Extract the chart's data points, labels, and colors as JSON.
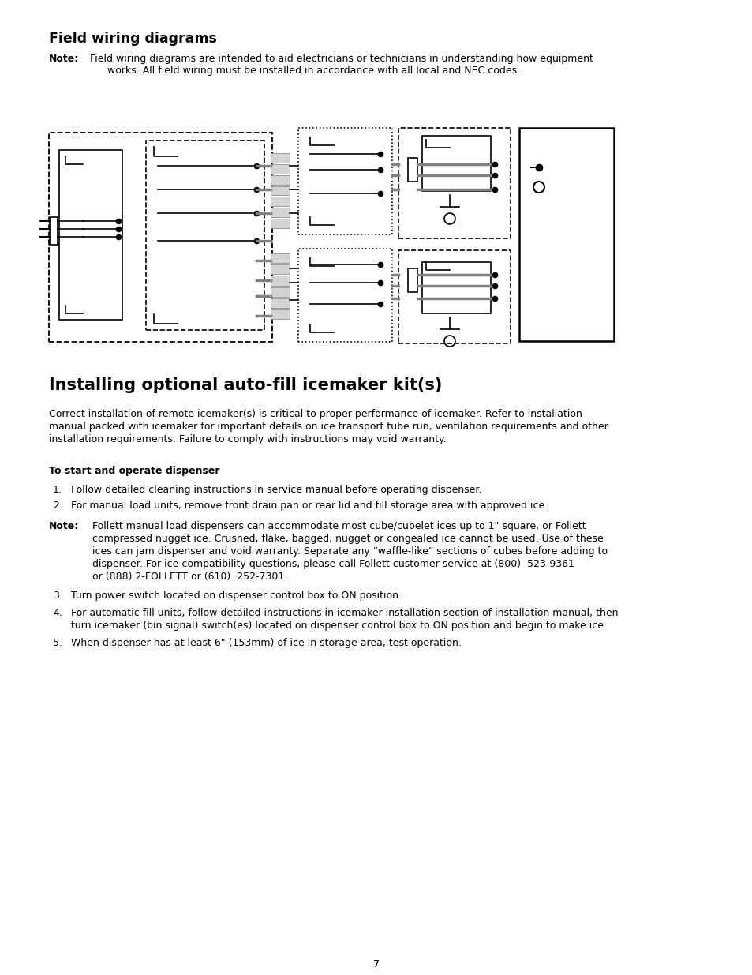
{
  "title1": "Field wiring diagrams",
  "note1_label": "Note:",
  "note1_text1": "Field wiring diagrams are intended to aid electricians or technicians in understanding how equipment",
  "note1_text2": "works. All field wiring must be installed in accordance with all local and NEC codes.",
  "title2": "Installing optional auto-fill icemaker kit(s)",
  "para1_1": "Correct installation of remote icemaker(s) is critical to proper performance of icemaker. Refer to installation",
  "para1_2": "manual packed with icemaker for important details on ice transport tube run, ventilation requirements and other",
  "para1_3": "installation requirements. Failure to comply with instructions may void warranty.",
  "sub1": "To start and operate dispenser",
  "item1": "Follow detailed cleaning instructions in service manual before operating dispenser.",
  "item2": "For manual load units, remove front drain pan or rear lid and fill storage area with approved ice.",
  "note2_label": "Note:",
  "note2_1": "Follett manual load dispensers can accommodate most cube/cubelet ices up to 1\" square, or Follett",
  "note2_2": "compressed nugget ice. Crushed, flake, bagged, nugget or congealed ice cannot be used. Use of these",
  "note2_3": "ices can jam dispenser and void warranty. Separate any “waffle-like” sections of cubes before adding to",
  "note2_4": "dispenser. For ice compatibility questions, please call Follett customer service at (800)  523-9361",
  "note2_5": "or (888) 2-FOLLETT or (610)  252-7301.",
  "item3": "Turn power switch located on dispenser control box to ON position.",
  "item4_1": "For automatic fill units, follow detailed instructions in icemaker installation section of installation manual, then",
  "item4_2": "turn icemaker (bin signal) switch(es) located on dispenser control box to ON position and begin to make ice.",
  "item5": "When dispenser has at least 6\" (153mm) of ice in storage area, test operation.",
  "page_number": "7",
  "bg_color": "#ffffff",
  "text_color": "#000000"
}
